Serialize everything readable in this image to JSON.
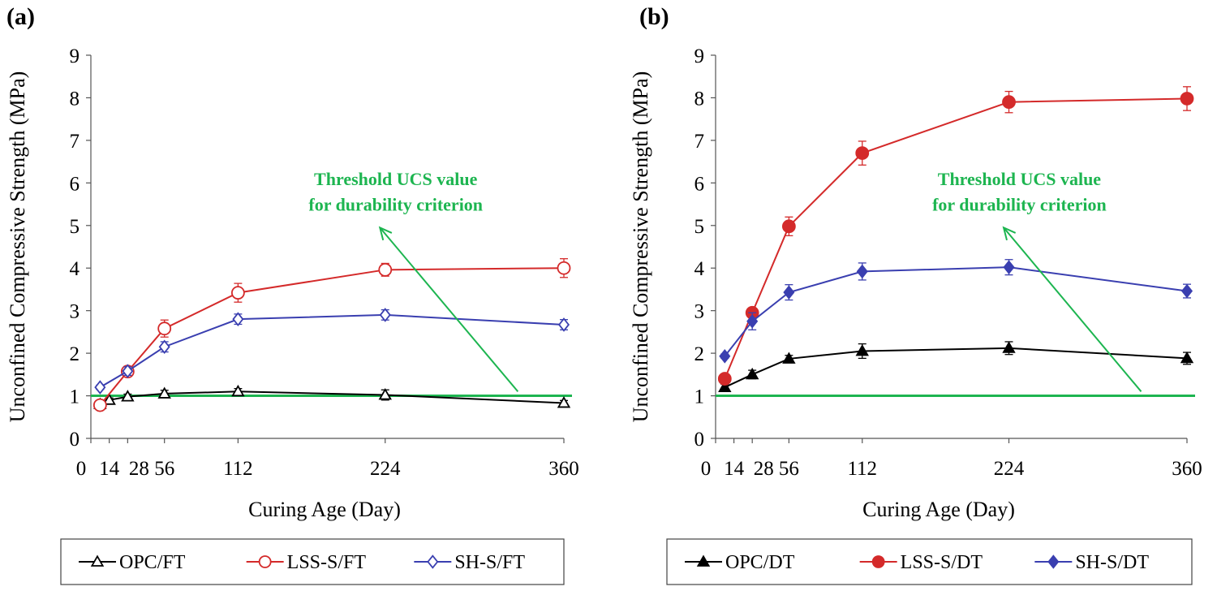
{
  "chart_data": [
    {
      "panel_label": "(a)",
      "type": "line",
      "xlabel": "Curing Age (Day)",
      "ylabel": "Unconfined Compressive Strength (MPa)",
      "xlim": [
        0,
        360
      ],
      "ylim": [
        0,
        9
      ],
      "x_ticks": [
        0,
        14,
        28,
        56,
        112,
        224,
        360
      ],
      "x_tick_labels": [
        "0",
        "14",
        "28",
        "56",
        "112",
        "224",
        "360"
      ],
      "y_ticks": [
        0,
        1,
        2,
        3,
        4,
        5,
        6,
        7,
        8,
        9
      ],
      "threshold": {
        "value": 1,
        "color": "#1db550"
      },
      "annotation": {
        "line1": "Threshold UCS value",
        "line2": "for durability criterion",
        "arrow_from": [
          325,
          1.1
        ],
        "arrow_to": [
          220,
          4.95
        ],
        "text_x": 232,
        "text_y1": 5.95,
        "text_y2": 5.35
      },
      "series": [
        {
          "name": "OPC/FT",
          "color": "#000000",
          "marker": "triangle-open",
          "x": [
            7,
            14,
            28,
            56,
            112,
            224,
            360
          ],
          "y": [
            0.8,
            0.9,
            0.98,
            1.05,
            1.1,
            1.02,
            0.83
          ],
          "err": [
            0.05,
            0.05,
            0.06,
            0.08,
            0.07,
            0.12,
            0.06
          ]
        },
        {
          "name": "LSS-S/FT",
          "color": "#d42a2a",
          "marker": "circle-open",
          "x": [
            7,
            28,
            56,
            112,
            224,
            360
          ],
          "y": [
            0.78,
            1.57,
            2.58,
            3.42,
            3.96,
            4.0
          ],
          "err": [
            0.05,
            0.12,
            0.2,
            0.22,
            0.15,
            0.22
          ]
        },
        {
          "name": "SH-S/FT",
          "color": "#3a3fb0",
          "marker": "diamond-open",
          "x": [
            7,
            28,
            56,
            112,
            224,
            360
          ],
          "y": [
            1.2,
            1.58,
            2.15,
            2.8,
            2.9,
            2.67
          ],
          "err": [
            0.05,
            0.1,
            0.12,
            0.12,
            0.12,
            0.12
          ]
        }
      ],
      "legend": [
        "OPC/FT",
        "LSS-S/FT",
        "SH-S/FT"
      ]
    },
    {
      "panel_label": "(b)",
      "type": "line",
      "xlabel": "Curing Age (Day)",
      "ylabel": "Unconfined Compressive Strength (MPa)",
      "xlim": [
        0,
        360
      ],
      "ylim": [
        0,
        9
      ],
      "x_ticks": [
        0,
        14,
        28,
        56,
        112,
        224,
        360
      ],
      "x_tick_labels": [
        "0",
        "14",
        "28",
        "56",
        "112",
        "224",
        "360"
      ],
      "y_ticks": [
        0,
        1,
        2,
        3,
        4,
        5,
        6,
        7,
        8,
        9
      ],
      "threshold": {
        "value": 1,
        "color": "#1db550"
      },
      "annotation": {
        "line1": "Threshold UCS value",
        "line2": "for durability criterion",
        "arrow_from": [
          325,
          1.1
        ],
        "arrow_to": [
          220,
          4.95
        ],
        "text_x": 232,
        "text_y1": 5.95,
        "text_y2": 5.35
      },
      "series": [
        {
          "name": "OPC/DT",
          "color": "#000000",
          "marker": "triangle-filled",
          "x": [
            7,
            28,
            56,
            112,
            224,
            360
          ],
          "y": [
            1.2,
            1.5,
            1.87,
            2.05,
            2.12,
            1.88
          ],
          "err": [
            0.07,
            0.1,
            0.08,
            0.17,
            0.15,
            0.14
          ]
        },
        {
          "name": "LSS-S/DT",
          "color": "#d42a2a",
          "marker": "circle-filled",
          "x": [
            7,
            28,
            56,
            112,
            224,
            360
          ],
          "y": [
            1.4,
            2.95,
            4.98,
            6.7,
            7.9,
            7.98
          ],
          "err": [
            0.1,
            0.1,
            0.22,
            0.28,
            0.25,
            0.28
          ]
        },
        {
          "name": "SH-S/DT",
          "color": "#3a3fb0",
          "marker": "diamond-filled",
          "x": [
            7,
            28,
            56,
            112,
            224,
            360
          ],
          "y": [
            1.93,
            2.75,
            3.43,
            3.92,
            4.02,
            3.46
          ],
          "err": [
            0.05,
            0.2,
            0.18,
            0.2,
            0.18,
            0.16
          ]
        }
      ],
      "legend": [
        "OPC/DT",
        "LSS-S/DT",
        "SH-S/DT"
      ]
    }
  ]
}
